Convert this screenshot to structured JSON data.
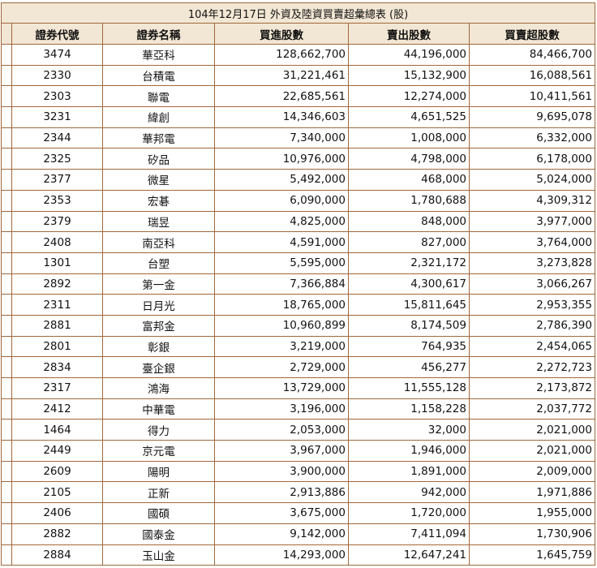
{
  "table": {
    "title": "104年12月17日 外資及陸資買賣超彙總表 (股)",
    "headers": [
      "證券代號",
      "證券名稱",
      "買進股數",
      "賣出股數",
      "買賣超股數"
    ],
    "rows": [
      {
        "code": "3474",
        "name": "華亞科",
        "buy": "128,662,700",
        "sell": "44,196,000",
        "net": "84,466,700"
      },
      {
        "code": "2330",
        "name": "台積電",
        "buy": "31,221,461",
        "sell": "15,132,900",
        "net": "16,088,561"
      },
      {
        "code": "2303",
        "name": "聯電",
        "buy": "22,685,561",
        "sell": "12,274,000",
        "net": "10,411,561"
      },
      {
        "code": "3231",
        "name": "緯創",
        "buy": "14,346,603",
        "sell": "4,651,525",
        "net": "9,695,078"
      },
      {
        "code": "2344",
        "name": "華邦電",
        "buy": "7,340,000",
        "sell": "1,008,000",
        "net": "6,332,000"
      },
      {
        "code": "2325",
        "name": "矽品",
        "buy": "10,976,000",
        "sell": "4,798,000",
        "net": "6,178,000"
      },
      {
        "code": "2377",
        "name": "微星",
        "buy": "5,492,000",
        "sell": "468,000",
        "net": "5,024,000"
      },
      {
        "code": "2353",
        "name": "宏碁",
        "buy": "6,090,000",
        "sell": "1,780,688",
        "net": "4,309,312"
      },
      {
        "code": "2379",
        "name": "瑞昱",
        "buy": "4,825,000",
        "sell": "848,000",
        "net": "3,977,000"
      },
      {
        "code": "2408",
        "name": "南亞科",
        "buy": "4,591,000",
        "sell": "827,000",
        "net": "3,764,000"
      },
      {
        "code": "1301",
        "name": "台塑",
        "buy": "5,595,000",
        "sell": "2,321,172",
        "net": "3,273,828"
      },
      {
        "code": "2892",
        "name": "第一金",
        "buy": "7,366,884",
        "sell": "4,300,617",
        "net": "3,066,267"
      },
      {
        "code": "2311",
        "name": "日月光",
        "buy": "18,765,000",
        "sell": "15,811,645",
        "net": "2,953,355"
      },
      {
        "code": "2881",
        "name": "富邦金",
        "buy": "10,960,899",
        "sell": "8,174,509",
        "net": "2,786,390"
      },
      {
        "code": "2801",
        "name": "彰銀",
        "buy": "3,219,000",
        "sell": "764,935",
        "net": "2,454,065"
      },
      {
        "code": "2834",
        "name": "臺企銀",
        "buy": "2,729,000",
        "sell": "456,277",
        "net": "2,272,723"
      },
      {
        "code": "2317",
        "name": "鴻海",
        "buy": "13,729,000",
        "sell": "11,555,128",
        "net": "2,173,872"
      },
      {
        "code": "2412",
        "name": "中華電",
        "buy": "3,196,000",
        "sell": "1,158,228",
        "net": "2,037,772"
      },
      {
        "code": "1464",
        "name": "得力",
        "buy": "2,053,000",
        "sell": "32,000",
        "net": "2,021,000"
      },
      {
        "code": "2449",
        "name": "京元電",
        "buy": "3,967,000",
        "sell": "1,946,000",
        "net": "2,021,000"
      },
      {
        "code": "2609",
        "name": "陽明",
        "buy": "3,900,000",
        "sell": "1,891,000",
        "net": "2,009,000"
      },
      {
        "code": "2105",
        "name": "正新",
        "buy": "2,913,886",
        "sell": "942,000",
        "net": "1,971,886"
      },
      {
        "code": "2406",
        "name": "國碩",
        "buy": "3,675,000",
        "sell": "1,720,000",
        "net": "1,955,000"
      },
      {
        "code": "2882",
        "name": "國泰金",
        "buy": "9,142,000",
        "sell": "7,411,094",
        "net": "1,730,906"
      },
      {
        "code": "2884",
        "name": "玉山金",
        "buy": "14,293,000",
        "sell": "12,647,241",
        "net": "1,645,759"
      }
    ]
  }
}
